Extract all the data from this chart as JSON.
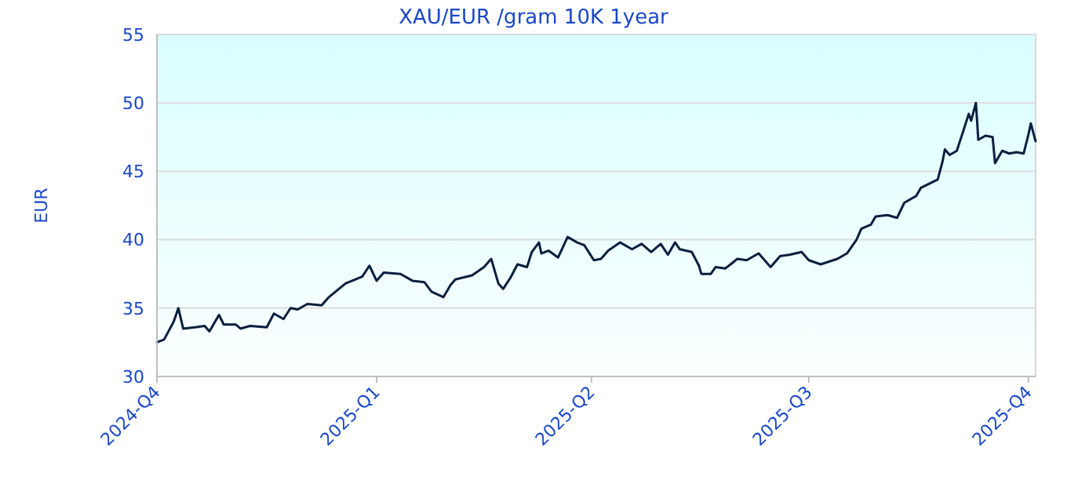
{
  "chart_data": {
    "type": "line",
    "title": "XAU/EUR /gram 10K 1year",
    "ylabel": "EUR",
    "xlim": [
      "2024-10-01",
      "2025-10-04"
    ],
    "xticks": [
      {
        "value": "2024-10-01",
        "label": "2024-Q4"
      },
      {
        "value": "2025-01-01",
        "label": "2025-Q1"
      },
      {
        "value": "2025-04-01",
        "label": "2025-Q2"
      },
      {
        "value": "2025-07-01",
        "label": "2025-Q3"
      },
      {
        "value": "2025-10-01",
        "label": "2025-Q4"
      }
    ],
    "ylim": [
      30,
      55
    ],
    "yticks": [
      30,
      35,
      40,
      45,
      50,
      55
    ],
    "grid": "y",
    "marker": "none",
    "line_style": "solid",
    "x": [
      "2024-10-01",
      "2024-10-04",
      "2024-10-08",
      "2024-10-10",
      "2024-10-12",
      "2024-10-17",
      "2024-10-21",
      "2024-10-23",
      "2024-10-27",
      "2024-10-29",
      "2024-11-03",
      "2024-11-05",
      "2024-11-09",
      "2024-11-16",
      "2024-11-19",
      "2024-11-23",
      "2024-11-26",
      "2024-11-29",
      "2024-12-03",
      "2024-12-09",
      "2024-12-12",
      "2024-12-19",
      "2024-12-26",
      "2024-12-29",
      "2025-01-01",
      "2025-01-04",
      "2025-01-11",
      "2025-01-16",
      "2025-01-21",
      "2025-01-24",
      "2025-01-29",
      "2025-02-01",
      "2025-02-03",
      "2025-02-10",
      "2025-02-15",
      "2025-02-18",
      "2025-02-21",
      "2025-02-23",
      "2025-02-26",
      "2025-03-01",
      "2025-03-05",
      "2025-03-07",
      "2025-03-10",
      "2025-03-11",
      "2025-03-14",
      "2025-03-18",
      "2025-03-22",
      "2025-03-26",
      "2025-03-29",
      "2025-04-02",
      "2025-04-05",
      "2025-04-08",
      "2025-04-13",
      "2025-04-18",
      "2025-04-22",
      "2025-04-26",
      "2025-04-30",
      "2025-05-03",
      "2025-05-06",
      "2025-05-08",
      "2025-05-13",
      "2025-05-16",
      "2025-05-17",
      "2025-05-21",
      "2025-05-23",
      "2025-05-27",
      "2025-05-30",
      "2025-06-01",
      "2025-06-05",
      "2025-06-10",
      "2025-06-15",
      "2025-06-19",
      "2025-06-23",
      "2025-06-28",
      "2025-07-01",
      "2025-07-06",
      "2025-07-13",
      "2025-07-17",
      "2025-07-21",
      "2025-07-23",
      "2025-07-27",
      "2025-07-29",
      "2025-08-03",
      "2025-08-07",
      "2025-08-10",
      "2025-08-15",
      "2025-08-17",
      "2025-08-24",
      "2025-08-26",
      "2025-08-27",
      "2025-08-29",
      "2025-09-01",
      "2025-09-04",
      "2025-09-06",
      "2025-09-07",
      "2025-09-09",
      "2025-09-10",
      "2025-09-13",
      "2025-09-16",
      "2025-09-17",
      "2025-09-20",
      "2025-09-23",
      "2025-09-26",
      "2025-09-29",
      "2025-10-01",
      "2025-10-02",
      "2025-10-04"
    ],
    "series": [
      {
        "color": "#0b1f3f",
        "values": [
          32.5,
          32.7,
          34.0,
          35.0,
          33.5,
          33.6,
          33.7,
          33.3,
          34.5,
          33.8,
          33.8,
          33.5,
          33.7,
          33.6,
          34.6,
          34.2,
          35.0,
          34.9,
          35.3,
          35.2,
          35.8,
          36.8,
          37.3,
          38.1,
          37.0,
          37.6,
          37.5,
          37.0,
          36.9,
          36.2,
          35.8,
          36.7,
          37.1,
          37.4,
          38.0,
          38.6,
          36.8,
          36.4,
          37.2,
          38.2,
          38.0,
          39.1,
          39.8,
          39.0,
          39.2,
          38.7,
          40.2,
          39.8,
          39.6,
          38.5,
          38.6,
          39.2,
          39.8,
          39.3,
          39.7,
          39.1,
          39.7,
          38.9,
          39.8,
          39.3,
          39.1,
          38.1,
          37.5,
          37.5,
          38.0,
          37.9,
          38.3,
          38.6,
          38.5,
          39.0,
          38.0,
          38.8,
          38.9,
          39.1,
          38.5,
          38.2,
          38.6,
          39.0,
          40.0,
          40.8,
          41.1,
          41.7,
          41.8,
          41.6,
          42.7,
          43.2,
          43.8,
          44.4,
          45.7,
          46.6,
          46.2,
          46.5,
          48.1,
          49.2,
          48.7,
          50.0,
          47.3,
          47.6,
          47.5,
          45.6,
          46.5,
          46.3,
          46.4,
          46.3,
          47.7,
          48.5,
          47.2
        ]
      }
    ]
  }
}
